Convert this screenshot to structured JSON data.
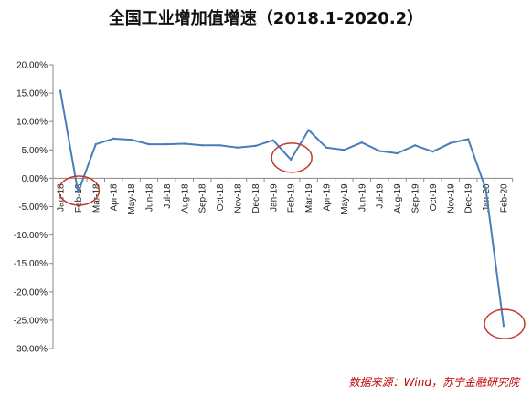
{
  "title": "全国工业增加值增速（2018.1-2020.2）",
  "source": "数据来源：Wind，苏宁金融研究院",
  "colors": {
    "line": "#4a7ebb",
    "highlight": "#c0392b",
    "axis": "#888888",
    "source": "#c00000"
  },
  "chart_data": {
    "type": "line",
    "title": "全国工业增加值增速（2018.1-2020.2）",
    "xlabel": "",
    "ylabel": "",
    "ylim": [
      -30,
      20
    ],
    "yticks": [
      20,
      15,
      10,
      5,
      0,
      -5,
      -10,
      -15,
      -20,
      -25,
      -30
    ],
    "ytick_labels": [
      "20.00%",
      "15.00%",
      "10.00%",
      "5.00%",
      "0.00%",
      "-5.00%",
      "-10.00%",
      "-15.00%",
      "-20.00%",
      "-25.00%",
      "-30.00%"
    ],
    "categories": [
      "Jan-18",
      "Feb-18",
      "Mar-18",
      "Apr-18",
      "May-18",
      "Jun-18",
      "Jul-18",
      "Aug-18",
      "Sep-18",
      "Oct-18",
      "Nov-18",
      "Dec-18",
      "Jan-19",
      "Feb-19",
      "Mar-19",
      "Apr-19",
      "May-19",
      "Jun-19",
      "Jul-19",
      "Aug-19",
      "Sep-19",
      "Oct-19",
      "Nov-19",
      "Dec-19",
      "Jan-20",
      "Feb-20"
    ],
    "series": [
      {
        "values": [
          15.4,
          -2.5,
          6.0,
          7.0,
          6.8,
          6.0,
          6.0,
          6.1,
          5.8,
          5.8,
          5.4,
          5.7,
          6.7,
          3.3,
          8.5,
          5.4,
          5.0,
          6.3,
          4.8,
          4.4,
          5.8,
          4.7,
          6.2,
          6.9,
          -2.0,
          -26.0
        ]
      }
    ],
    "highlighted": [
      "Feb-18",
      "Feb-19",
      "Feb-20"
    ],
    "grid": false
  }
}
